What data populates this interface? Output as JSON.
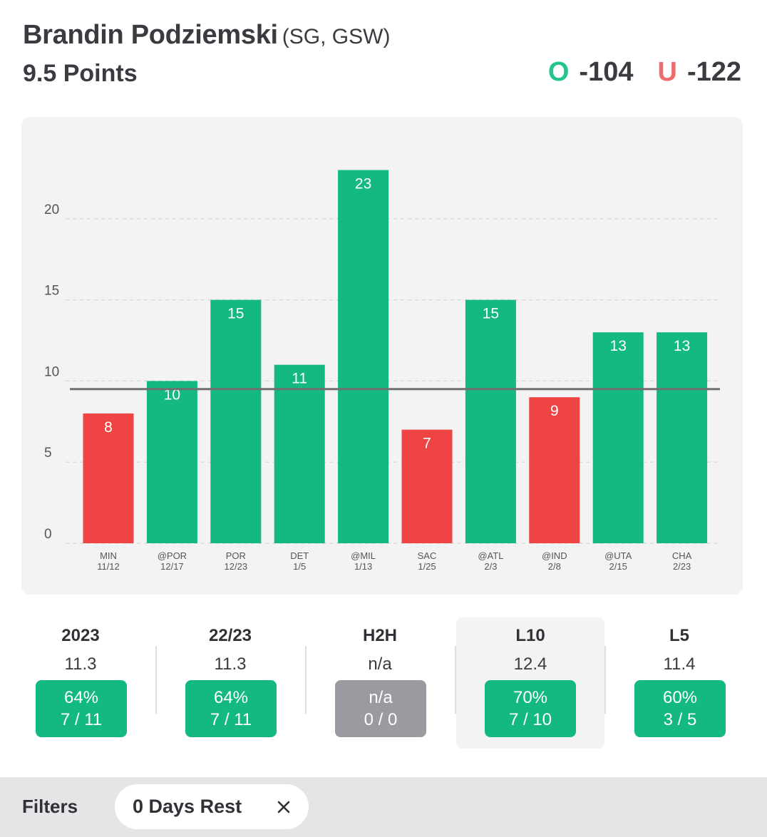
{
  "header": {
    "player_name": "Brandin Podziemski",
    "player_meta": "(SG, GSW)",
    "prop": "9.5 Points",
    "over_label": "O",
    "over_odds": "-104",
    "under_label": "U",
    "under_odds": "-122"
  },
  "colors": {
    "over": "#14b97f",
    "under": "#ef4444",
    "line": "#707070",
    "grid": "#d4d4d4"
  },
  "chart_data": {
    "type": "bar",
    "title": "Brandin Podziemski 9.5 Points",
    "ylabel": "",
    "xlabel": "",
    "ylim": [
      0,
      25
    ],
    "yticks": [
      0,
      5,
      10,
      15,
      20
    ],
    "threshold": 9.5,
    "categories": [
      {
        "opp": "MIN",
        "date": "11/12"
      },
      {
        "opp": "@POR",
        "date": "12/17"
      },
      {
        "opp": "POR",
        "date": "12/23"
      },
      {
        "opp": "DET",
        "date": "1/5"
      },
      {
        "opp": "@MIL",
        "date": "1/13"
      },
      {
        "opp": "SAC",
        "date": "1/25"
      },
      {
        "opp": "@ATL",
        "date": "2/3"
      },
      {
        "opp": "@IND",
        "date": "2/8"
      },
      {
        "opp": "@UTA",
        "date": "2/15"
      },
      {
        "opp": "CHA",
        "date": "2/23"
      }
    ],
    "values": [
      8,
      10,
      15,
      11,
      23,
      7,
      15,
      9,
      13,
      13
    ]
  },
  "stats": [
    {
      "label": "2023",
      "avg": "11.3",
      "pct": "64%",
      "record": "7 / 11",
      "status": "green",
      "selected": false
    },
    {
      "label": "22/23",
      "avg": "11.3",
      "pct": "64%",
      "record": "7 / 11",
      "status": "green",
      "selected": false
    },
    {
      "label": "H2H",
      "avg": "n/a",
      "pct": "n/a",
      "record": "0 / 0",
      "status": "gray",
      "selected": false
    },
    {
      "label": "L10",
      "avg": "12.4",
      "pct": "70%",
      "record": "7 / 10",
      "status": "green",
      "selected": true
    },
    {
      "label": "L5",
      "avg": "11.4",
      "pct": "60%",
      "record": "3 / 5",
      "status": "green",
      "selected": false
    }
  ],
  "filters": {
    "label": "Filters",
    "chip_label": "0 Days Rest",
    "chip_close_icon": "close-icon"
  }
}
